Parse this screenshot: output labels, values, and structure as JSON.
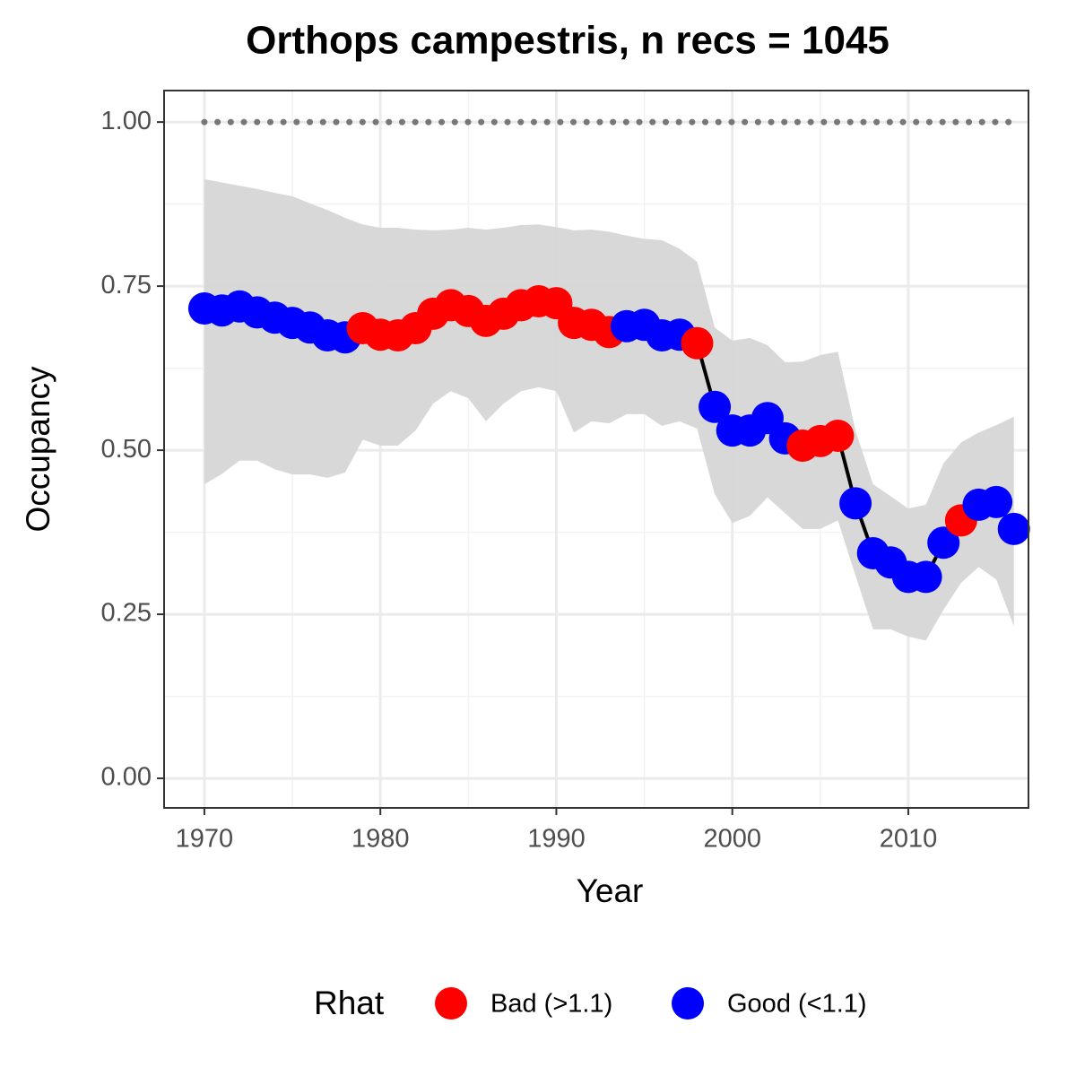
{
  "chart_data": {
    "type": "line",
    "title": "Orthops campestris, n recs = 1045",
    "x_label": "Year",
    "y_label": "Occupancy",
    "x": [
      1970,
      1971,
      1972,
      1973,
      1974,
      1975,
      1976,
      1977,
      1978,
      1979,
      1980,
      1981,
      1982,
      1983,
      1984,
      1985,
      1986,
      1987,
      1988,
      1989,
      1990,
      1991,
      1992,
      1993,
      1994,
      1995,
      1996,
      1997,
      1998,
      1999,
      2000,
      2001,
      2002,
      2003,
      2004,
      2005,
      2006,
      2007,
      2008,
      2009,
      2010,
      2011,
      2012,
      2013,
      2014,
      2015,
      2016
    ],
    "values": [
      0.716,
      0.713,
      0.719,
      0.71,
      0.702,
      0.694,
      0.687,
      0.675,
      0.672,
      0.686,
      0.676,
      0.675,
      0.686,
      0.708,
      0.721,
      0.712,
      0.697,
      0.708,
      0.721,
      0.727,
      0.724,
      0.694,
      0.691,
      0.68,
      0.689,
      0.691,
      0.675,
      0.676,
      0.663,
      0.566,
      0.53,
      0.53,
      0.549,
      0.518,
      0.507,
      0.514,
      0.522,
      0.419,
      0.343,
      0.329,
      0.307,
      0.307,
      0.359,
      0.393,
      0.417,
      0.421,
      0.38
    ],
    "upper": [
      0.913,
      0.908,
      0.903,
      0.898,
      0.892,
      0.887,
      0.876,
      0.866,
      0.854,
      0.844,
      0.839,
      0.839,
      0.836,
      0.835,
      0.836,
      0.839,
      0.836,
      0.839,
      0.843,
      0.844,
      0.84,
      0.835,
      0.836,
      0.833,
      0.827,
      0.822,
      0.82,
      0.807,
      0.787,
      0.687,
      0.667,
      0.671,
      0.66,
      0.634,
      0.635,
      0.645,
      0.65,
      0.53,
      0.448,
      0.43,
      0.411,
      0.417,
      0.48,
      0.512,
      0.527,
      0.538,
      0.551
    ],
    "lower": [
      0.448,
      0.464,
      0.484,
      0.484,
      0.471,
      0.463,
      0.463,
      0.458,
      0.466,
      0.516,
      0.507,
      0.507,
      0.53,
      0.571,
      0.59,
      0.579,
      0.544,
      0.571,
      0.59,
      0.596,
      0.59,
      0.527,
      0.544,
      0.541,
      0.555,
      0.555,
      0.537,
      0.544,
      0.533,
      0.433,
      0.389,
      0.4,
      0.428,
      0.404,
      0.38,
      0.38,
      0.393,
      0.309,
      0.227,
      0.227,
      0.216,
      0.21,
      0.257,
      0.298,
      0.322,
      0.303,
      0.232
    ],
    "rhat_group": [
      1,
      1,
      1,
      1,
      1,
      1,
      1,
      1,
      1,
      0,
      0,
      0,
      0,
      0,
      0,
      0,
      0,
      0,
      0,
      0,
      0,
      0,
      0,
      0,
      1,
      1,
      1,
      1,
      0,
      1,
      1,
      1,
      1,
      1,
      0,
      0,
      0,
      1,
      1,
      1,
      1,
      1,
      1,
      0,
      1,
      1,
      1
    ],
    "legend": {
      "title": "Rhat",
      "items": [
        {
          "name": "Bad (>1.1)",
          "color": "#ff0000"
        },
        {
          "name": "Good (<1.1)",
          "color": "#0000ff"
        }
      ]
    },
    "line_color": "#000000",
    "band_color": "#d6d6d6",
    "hline": 1,
    "hline_color": "#777777",
    "xlim": [
      1967.71,
      2016.83
    ],
    "ylim": [
      -0.045,
      1.048
    ],
    "xticks": [
      1970,
      1980,
      1990,
      2000,
      2010
    ],
    "yticks": [
      {
        "value": 0,
        "label": "0.00"
      },
      {
        "value": 0.25,
        "label": "0.25"
      },
      {
        "value": 0.5,
        "label": "0.50"
      },
      {
        "value": 0.75,
        "label": "0.75"
      },
      {
        "value": 1,
        "label": "1.00"
      }
    ],
    "grid": true
  }
}
